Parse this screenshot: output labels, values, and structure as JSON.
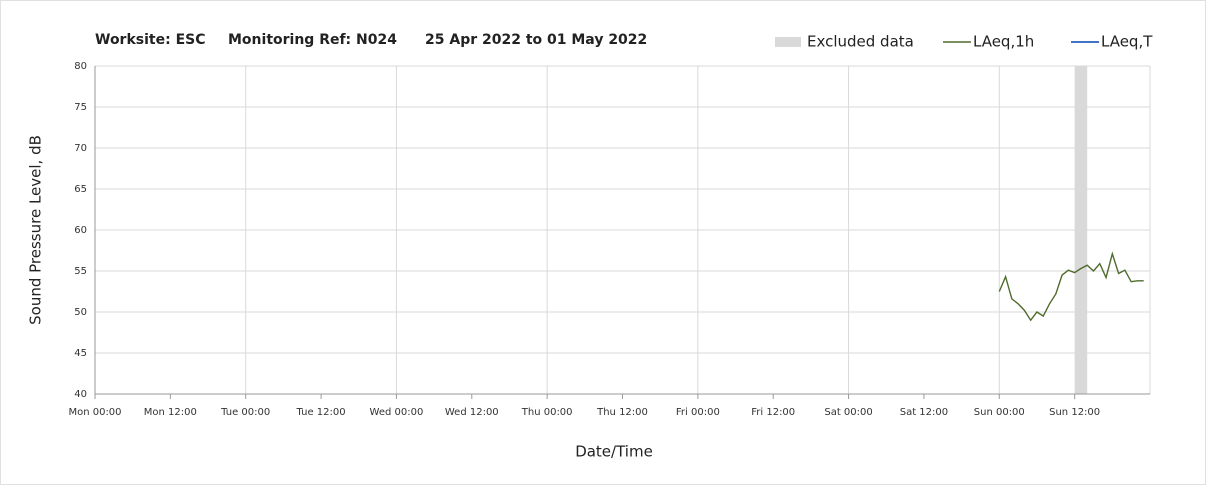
{
  "chart_data": {
    "type": "line",
    "title": [
      "Worksite: ESC",
      "Monitoring Ref: N024",
      "25 Apr 2022 to 01 May 2022"
    ],
    "x_label": "Date/Time",
    "y_label": "Sound Pressure Level, dB",
    "xlim": [
      0,
      168
    ],
    "xticks": [
      {
        "value": 0,
        "label": "Mon 00:00"
      },
      {
        "value": 12,
        "label": "Mon 12:00"
      },
      {
        "value": 24,
        "label": "Tue 00:00"
      },
      {
        "value": 36,
        "label": "Tue 12:00"
      },
      {
        "value": 48,
        "label": "Wed 00:00"
      },
      {
        "value": 60,
        "label": "Wed 12:00"
      },
      {
        "value": 72,
        "label": "Thu 00:00"
      },
      {
        "value": 84,
        "label": "Thu 12:00"
      },
      {
        "value": 96,
        "label": "Fri 00:00"
      },
      {
        "value": 108,
        "label": "Fri 12:00"
      },
      {
        "value": 120,
        "label": "Sat 00:00"
      },
      {
        "value": 132,
        "label": "Sat 12:00"
      },
      {
        "value": 144,
        "label": "Sun 00:00"
      },
      {
        "value": 156,
        "label": "Sun 12:00"
      }
    ],
    "ylim": [
      40,
      80
    ],
    "yticks": [
      40,
      45,
      50,
      55,
      60,
      65,
      70,
      75,
      80
    ],
    "grid": true,
    "legend": "top-right",
    "excluded": {
      "name": "Excluded data",
      "color": "#d9d9d9",
      "range": [
        156,
        158
      ]
    },
    "x": [
      144,
      145,
      146,
      147,
      148,
      149,
      150,
      151,
      152,
      153,
      154,
      155,
      156,
      157,
      158,
      159,
      160,
      161,
      162,
      163,
      164,
      165,
      166,
      167
    ],
    "series": [
      {
        "name": "LAeq,1h",
        "color": "#4f6b2c",
        "values": [
          52.5,
          54.3,
          51.6,
          51,
          50.2,
          49,
          50,
          49.5,
          51,
          52.2,
          54.5,
          55.1,
          54.8,
          55.3,
          55.7,
          55,
          55.9,
          54.2,
          57.1,
          54.7,
          55.1,
          53.7,
          53.8,
          53.8
        ]
      },
      {
        "name": "LAeq,T",
        "color": "#4472c4",
        "values": [
          null,
          null,
          null,
          null,
          null,
          null,
          null,
          null,
          null,
          null,
          null,
          null,
          null,
          null,
          null,
          null,
          null,
          null,
          null,
          null,
          null,
          null,
          null,
          null
        ]
      }
    ]
  }
}
